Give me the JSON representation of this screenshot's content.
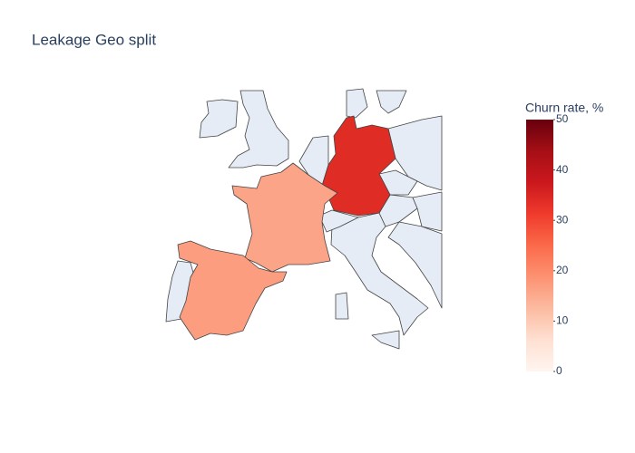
{
  "chart_data": {
    "type": "choropleth",
    "title": "Leakage Geo split",
    "values": [
      34,
      16,
      17
    ],
    "colorbar_title": "Churn rate, %",
    "colorscale": [
      "#fff5f0",
      "#fee0d2",
      "#fcbba1",
      "#fc9272",
      "#fb6a4a",
      "#ef3b2c",
      "#cb181d",
      "#a50f15",
      "#67000d"
    ],
    "clim": [
      0,
      50
    ],
    "cticks": [
      0,
      10,
      20,
      30,
      40,
      50
    ]
  }
}
